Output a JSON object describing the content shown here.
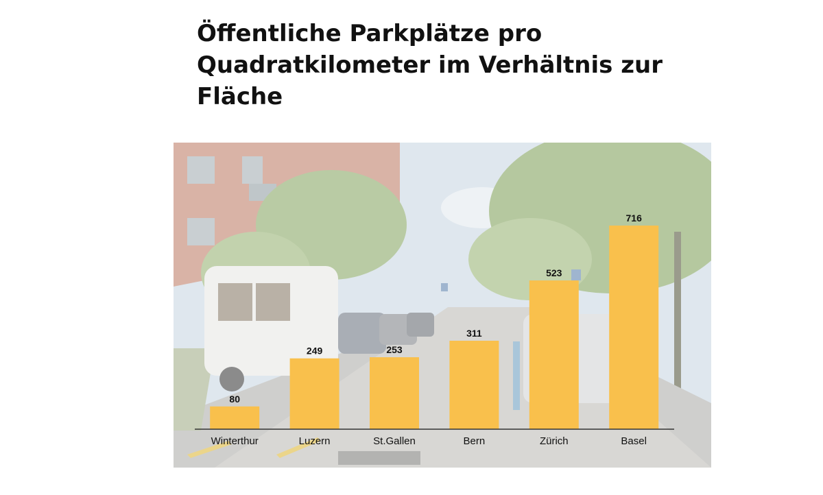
{
  "chart_data": {
    "type": "bar",
    "title": "Öffentliche Parkplätze pro Quadratkilometer im Verhältnis zur Fläche",
    "categories": [
      "Winterthur",
      "Luzern",
      "St.Gallen",
      "Bern",
      "Zürich",
      "Basel"
    ],
    "values": [
      80,
      249,
      253,
      311,
      523,
      716
    ],
    "value_labels": [
      "80",
      "249",
      "253",
      "311",
      "523",
      "716"
    ],
    "ylim": [
      0,
      716
    ],
    "grid": false,
    "legend": "none",
    "bar_color": "#f9c04c",
    "axis_color": "#333333",
    "background": "street photo with parked cars and trees (faded)"
  }
}
